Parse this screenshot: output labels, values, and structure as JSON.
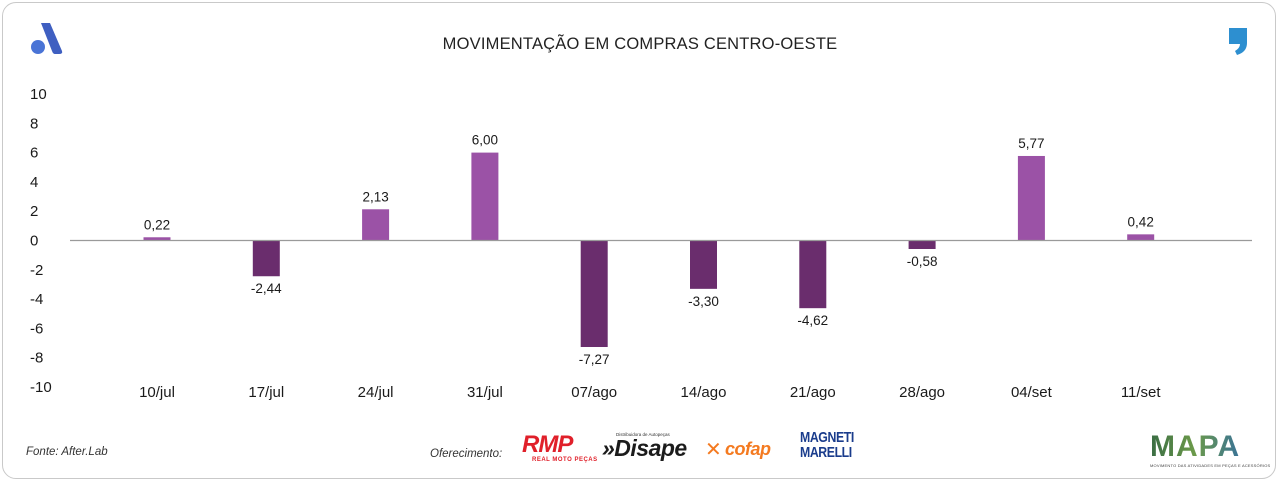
{
  "header": {
    "title": "MOVIMENTAÇÃO EM COMPRAS CENTRO-OESTE",
    "left_logo_icon": "a-logo-icon",
    "right_logo_icon": "comma-logo-icon"
  },
  "footer": {
    "source": "Fonte: After.Lab",
    "sponsored_by": "Oferecimento:",
    "sponsors": {
      "rmp": {
        "mark": "RMP",
        "subtitle": "REAL MOTO PEÇAS"
      },
      "disape": {
        "mark": "»Disape",
        "subtitle": "Distribuidora de Autopeças"
      },
      "cofap": {
        "mark": "cofap"
      },
      "magneti": {
        "line1": "MAGNETI",
        "line2": "MARELLI"
      }
    },
    "mapa": {
      "mark": "MAPA",
      "subtitle": "MOVIMENTO DAS ATIVIDADES EM PEÇAS E ACESSÓRIOS"
    }
  },
  "colors": {
    "positive": "#9b52a6",
    "negative": "#6a2d6d",
    "axis": "#9a9a9a",
    "text": "#1a1a1a"
  },
  "chart_data": {
    "type": "bar",
    "title": "MOVIMENTAÇÃO EM COMPRAS CENTRO-OESTE",
    "xlabel": "",
    "ylabel": "",
    "ylim": [
      -10,
      10
    ],
    "yticks": [
      10,
      8,
      6,
      4,
      2,
      0,
      -2,
      -4,
      -6,
      -8,
      -10
    ],
    "ytick_labels": [
      "10",
      "8",
      "6",
      "4",
      "2",
      "0",
      "-2",
      "-4",
      "-6",
      "-8",
      "-10"
    ],
    "categories": [
      "10/jul",
      "17/jul",
      "24/jul",
      "31/jul",
      "07/ago",
      "14/ago",
      "21/ago",
      "28/ago",
      "04/set",
      "11/set"
    ],
    "values": [
      0.22,
      -2.44,
      2.13,
      6.0,
      -7.27,
      -3.3,
      -4.62,
      -0.58,
      5.77,
      0.42
    ],
    "data_labels": [
      "0,22",
      "-2,44",
      "2,13",
      "6,00",
      "-7,27",
      "-3,30",
      "-4,62",
      "-0,58",
      "5,77",
      "0,42"
    ],
    "grid": false,
    "legend": "none"
  }
}
